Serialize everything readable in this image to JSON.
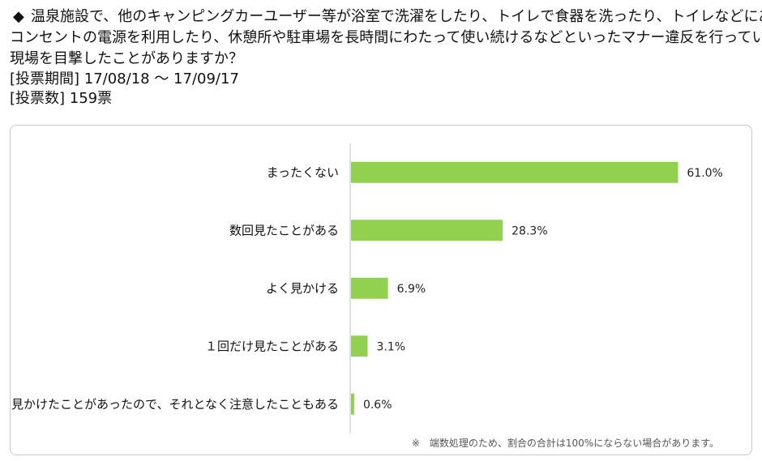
{
  "header": {
    "bullet": "◆",
    "question_lines": [
      "温泉施設で、他のキャンピングカーユーザー等が浴室で洗濯をしたり、トイレで食器を洗ったり、トイレなどにある",
      "コンセントの電源を利用したり、休憩所や駐車場を長時間にわたって使い続けるなどといったマナー違反を行っている",
      "現場を目撃したことがありますか？"
    ],
    "period": "[投票期間] 17/08/18 ～ 17/09/17",
    "votes": "[投票数] 159票"
  },
  "chart_data": {
    "type": "bar",
    "orientation": "horizontal",
    "categories": [
      "まったくない",
      "数回見たことがある",
      "よく見かける",
      "１回だけ見たことがある",
      "見かけたことがあったので、それとなく注意したこともある"
    ],
    "values": [
      61.0,
      28.3,
      6.9,
      3.1,
      0.6
    ],
    "value_labels": [
      "61.0%",
      "28.3%",
      "6.9%",
      "3.1%",
      "0.6%"
    ],
    "xlim": [
      0,
      62
    ],
    "bar_color": "#92d050",
    "axis_color": "#bfbfbf",
    "grid": false,
    "legend": "none"
  },
  "footnote": "※　端数処理のため、割合の合計は100%にならない場合があります。"
}
